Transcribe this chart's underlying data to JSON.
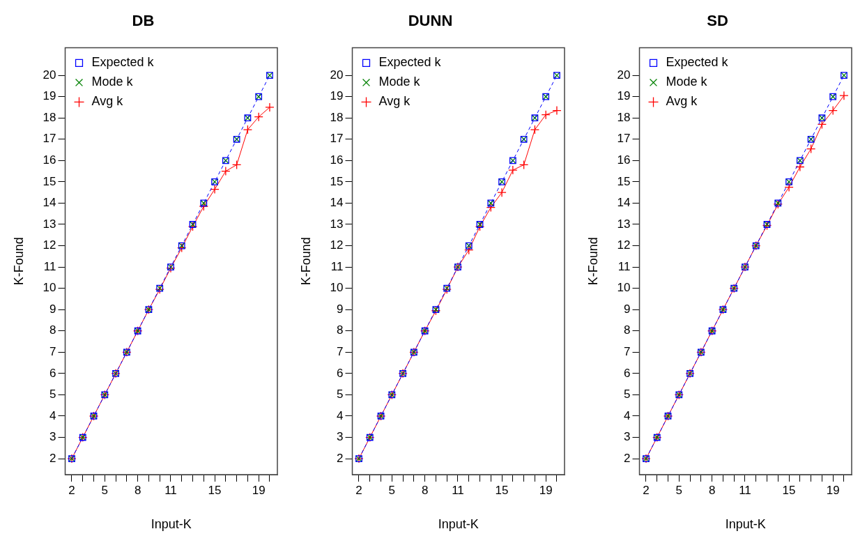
{
  "chart_data": [
    {
      "type": "line",
      "title": "DB",
      "xlabel": "Input-K",
      "ylabel": "K-Found",
      "x": [
        2,
        3,
        4,
        5,
        6,
        7,
        8,
        9,
        10,
        11,
        12,
        13,
        14,
        15,
        16,
        17,
        18,
        19,
        20
      ],
      "xlim": [
        1.4,
        20.7
      ],
      "ylim": [
        1.25,
        21.3
      ],
      "xticks": [
        2,
        {
          "value": 3,
          "label": null
        },
        {
          "value": 4,
          "label": null
        },
        5,
        {
          "value": 6,
          "label": null
        },
        {
          "value": 7,
          "label": null
        },
        8,
        {
          "value": 9,
          "label": null
        },
        {
          "value": 10,
          "label": null
        },
        11,
        {
          "value": 12,
          "label": null
        },
        {
          "value": 13,
          "label": null
        },
        {
          "value": 14,
          "label": null
        },
        15,
        {
          "value": 16,
          "label": null
        },
        {
          "value": 17,
          "label": null
        },
        {
          "value": 18,
          "label": null
        },
        19,
        {
          "value": 20,
          "label": null
        }
      ],
      "yticks": [
        2,
        3,
        4,
        5,
        6,
        7,
        8,
        9,
        10,
        11,
        12,
        13,
        14,
        15,
        16,
        17,
        18,
        19,
        20
      ],
      "legend": "top left",
      "grid": false,
      "series": [
        {
          "name": "Expected k",
          "type": "line",
          "color": "#0000ff",
          "marker": "square",
          "line_style": "dashed",
          "values": [
            2,
            3,
            4,
            5,
            6,
            7,
            8,
            9,
            10,
            11,
            12,
            13,
            14,
            15,
            16,
            17,
            18,
            19,
            20
          ]
        },
        {
          "name": "Mode k",
          "type": "scatter",
          "color": "#008000",
          "marker": "cross",
          "values": [
            2,
            3,
            4,
            5,
            6,
            7,
            8,
            9,
            10,
            11,
            12,
            13,
            14,
            15,
            16,
            17,
            18,
            19,
            20
          ]
        },
        {
          "name": "Avg k",
          "type": "line",
          "color": "#ff0000",
          "marker": "cross",
          "line_style": "solid",
          "values": [
            2,
            3,
            4,
            5,
            6,
            7,
            8,
            9,
            9.95,
            10.95,
            11.9,
            12.9,
            13.85,
            14.65,
            15.5,
            15.8,
            17.45,
            18.05,
            18.5
          ]
        }
      ]
    },
    {
      "type": "line",
      "title": "DUNN",
      "xlabel": "Input-K",
      "ylabel": "K-Found",
      "x": [
        2,
        3,
        4,
        5,
        6,
        7,
        8,
        9,
        10,
        11,
        12,
        13,
        14,
        15,
        16,
        17,
        18,
        19,
        20
      ],
      "xlim": [
        1.4,
        20.7
      ],
      "ylim": [
        1.25,
        21.3
      ],
      "xticks": [
        2,
        {
          "value": 3,
          "label": null
        },
        {
          "value": 4,
          "label": null
        },
        5,
        {
          "value": 6,
          "label": null
        },
        {
          "value": 7,
          "label": null
        },
        8,
        {
          "value": 9,
          "label": null
        },
        {
          "value": 10,
          "label": null
        },
        11,
        {
          "value": 12,
          "label": null
        },
        {
          "value": 13,
          "label": null
        },
        {
          "value": 14,
          "label": null
        },
        15,
        {
          "value": 16,
          "label": null
        },
        {
          "value": 17,
          "label": null
        },
        {
          "value": 18,
          "label": null
        },
        19,
        {
          "value": 20,
          "label": null
        }
      ],
      "yticks": [
        2,
        3,
        4,
        5,
        6,
        7,
        8,
        9,
        10,
        11,
        12,
        13,
        14,
        15,
        16,
        17,
        18,
        19,
        20
      ],
      "legend": "top left",
      "grid": false,
      "series": [
        {
          "name": "Expected k",
          "type": "line",
          "color": "#0000ff",
          "marker": "square",
          "line_style": "dashed",
          "values": [
            2,
            3,
            4,
            5,
            6,
            7,
            8,
            9,
            10,
            11,
            12,
            13,
            14,
            15,
            16,
            17,
            18,
            19,
            20
          ]
        },
        {
          "name": "Mode k",
          "type": "scatter",
          "color": "#008000",
          "marker": "cross",
          "values": [
            2,
            3,
            4,
            5,
            6,
            7,
            8,
            9,
            10,
            11,
            12,
            13,
            14,
            15,
            16,
            17,
            18,
            19,
            20
          ]
        },
        {
          "name": "Avg k",
          "type": "line",
          "color": "#ff0000",
          "marker": "cross",
          "line_style": "solid",
          "values": [
            2,
            3,
            4,
            5,
            6,
            7,
            8,
            8.95,
            9.95,
            11,
            11.8,
            12.9,
            13.8,
            14.5,
            15.55,
            15.8,
            17.45,
            18.15,
            18.35
          ]
        }
      ]
    },
    {
      "type": "line",
      "title": "SD",
      "xlabel": "Input-K",
      "ylabel": "K-Found",
      "x": [
        2,
        3,
        4,
        5,
        6,
        7,
        8,
        9,
        10,
        11,
        12,
        13,
        14,
        15,
        16,
        17,
        18,
        19,
        20
      ],
      "xlim": [
        1.4,
        20.7
      ],
      "ylim": [
        1.25,
        21.3
      ],
      "xticks": [
        2,
        {
          "value": 3,
          "label": null
        },
        {
          "value": 4,
          "label": null
        },
        5,
        {
          "value": 6,
          "label": null
        },
        {
          "value": 7,
          "label": null
        },
        8,
        {
          "value": 9,
          "label": null
        },
        {
          "value": 10,
          "label": null
        },
        11,
        {
          "value": 12,
          "label": null
        },
        {
          "value": 13,
          "label": null
        },
        {
          "value": 14,
          "label": null
        },
        15,
        {
          "value": 16,
          "label": null
        },
        {
          "value": 17,
          "label": null
        },
        {
          "value": 18,
          "label": null
        },
        19,
        {
          "value": 20,
          "label": null
        }
      ],
      "yticks": [
        2,
        3,
        4,
        5,
        6,
        7,
        8,
        9,
        10,
        11,
        12,
        13,
        14,
        15,
        16,
        17,
        18,
        19,
        20
      ],
      "legend": "top left",
      "grid": false,
      "series": [
        {
          "name": "Expected k",
          "type": "line",
          "color": "#0000ff",
          "marker": "square",
          "line_style": "dashed",
          "values": [
            2,
            3,
            4,
            5,
            6,
            7,
            8,
            9,
            10,
            11,
            12,
            13,
            14,
            15,
            16,
            17,
            18,
            19,
            20
          ]
        },
        {
          "name": "Mode k",
          "type": "scatter",
          "color": "#008000",
          "marker": "cross",
          "values": [
            2,
            3,
            4,
            5,
            6,
            7,
            8,
            9,
            10,
            11,
            12,
            13,
            14,
            15,
            16,
            17,
            18,
            19,
            20
          ]
        },
        {
          "name": "Avg k",
          "type": "line",
          "color": "#ff0000",
          "marker": "cross",
          "line_style": "solid",
          "values": [
            2,
            3,
            4,
            5,
            6,
            7,
            8,
            9,
            10,
            11,
            12,
            12.95,
            13.95,
            14.75,
            15.7,
            16.55,
            17.7,
            18.35,
            19.05
          ]
        }
      ]
    }
  ]
}
